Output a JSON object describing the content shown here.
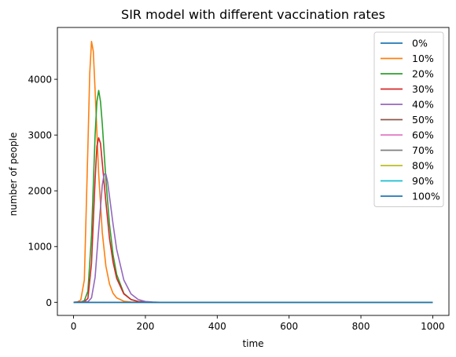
{
  "chart_data": {
    "type": "line",
    "title": "SIR model with different vaccination rates",
    "xlabel": "time",
    "ylabel": "number of people",
    "xlim": [
      -45,
      1045
    ],
    "ylim": [
      -235,
      4930
    ],
    "xticks": [
      0,
      200,
      400,
      600,
      800,
      1000
    ],
    "yticks": [
      0,
      1000,
      2000,
      3000,
      4000
    ],
    "grid": false,
    "legend_position": "top-right",
    "series": [
      {
        "name": "0%",
        "color": "#1f77b4",
        "x": [
          0,
          1000
        ],
        "y": [
          0,
          0
        ]
      },
      {
        "name": "10%",
        "color": "#ff7f0e",
        "x": [
          0,
          10,
          20,
          30,
          40,
          45,
          50,
          55,
          60,
          70,
          80,
          90,
          100,
          110,
          120,
          140,
          160,
          180,
          200,
          250,
          1000
        ],
        "y": [
          0,
          5,
          40,
          400,
          2800,
          4100,
          4680,
          4500,
          3800,
          2300,
          1250,
          650,
          330,
          160,
          80,
          20,
          5,
          2,
          0,
          0,
          0
        ]
      },
      {
        "name": "20%",
        "color": "#2ca02c",
        "x": [
          0,
          20,
          30,
          40,
          50,
          55,
          60,
          65,
          70,
          75,
          80,
          90,
          100,
          110,
          120,
          140,
          160,
          180,
          200,
          220,
          1000
        ],
        "y": [
          0,
          5,
          30,
          200,
          1200,
          2100,
          3000,
          3600,
          3800,
          3600,
          3200,
          2200,
          1400,
          850,
          500,
          160,
          50,
          15,
          5,
          0,
          0
        ]
      },
      {
        "name": "30%",
        "color": "#d62728",
        "x": [
          0,
          30,
          40,
          50,
          60,
          65,
          70,
          75,
          80,
          90,
          100,
          110,
          120,
          140,
          160,
          180,
          200,
          220,
          1000
        ],
        "y": [
          0,
          10,
          70,
          700,
          2200,
          2800,
          2950,
          2850,
          2500,
          1800,
          1150,
          720,
          430,
          150,
          50,
          15,
          5,
          0,
          0
        ]
      },
      {
        "name": "40%",
        "color": "#9467bd",
        "x": [
          0,
          40,
          50,
          60,
          70,
          80,
          85,
          90,
          95,
          100,
          110,
          120,
          140,
          160,
          180,
          200,
          220,
          240,
          1000
        ],
        "y": [
          0,
          10,
          80,
          450,
          1300,
          2100,
          2300,
          2300,
          2150,
          1900,
          1400,
          950,
          400,
          150,
          50,
          15,
          5,
          0,
          0
        ]
      },
      {
        "name": "50%",
        "color": "#8c564b",
        "x": [
          0,
          1000
        ],
        "y": [
          0,
          0
        ]
      },
      {
        "name": "60%",
        "color": "#e377c2",
        "x": [
          0,
          1000
        ],
        "y": [
          0,
          0
        ]
      },
      {
        "name": "70%",
        "color": "#7f7f7f",
        "x": [
          0,
          1000
        ],
        "y": [
          0,
          0
        ]
      },
      {
        "name": "80%",
        "color": "#bcbd22",
        "x": [
          0,
          1000
        ],
        "y": [
          0,
          0
        ]
      },
      {
        "name": "90%",
        "color": "#17becf",
        "x": [
          0,
          1000
        ],
        "y": [
          0,
          0
        ]
      },
      {
        "name": "100%",
        "color": "#1f77b4",
        "x": [
          0,
          1000
        ],
        "y": [
          0,
          0
        ]
      }
    ]
  }
}
